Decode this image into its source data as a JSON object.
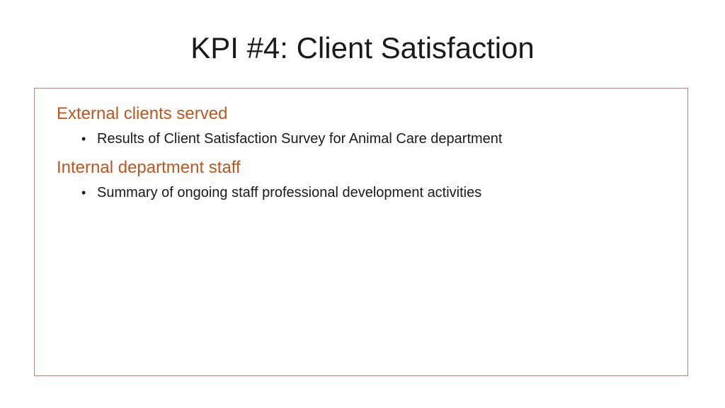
{
  "slide": {
    "title": "KPI #4: Client Satisfaction",
    "accent_color": "#c0561f",
    "border_color": "#c0806a",
    "sections": [
      {
        "heading": "External clients served",
        "bullets": [
          "Results of Client Satisfaction Survey for Animal Care department"
        ]
      },
      {
        "heading": "Internal department staff",
        "bullets": [
          "Summary of ongoing staff professional development activities"
        ]
      }
    ],
    "bullet_glyph": "•"
  }
}
